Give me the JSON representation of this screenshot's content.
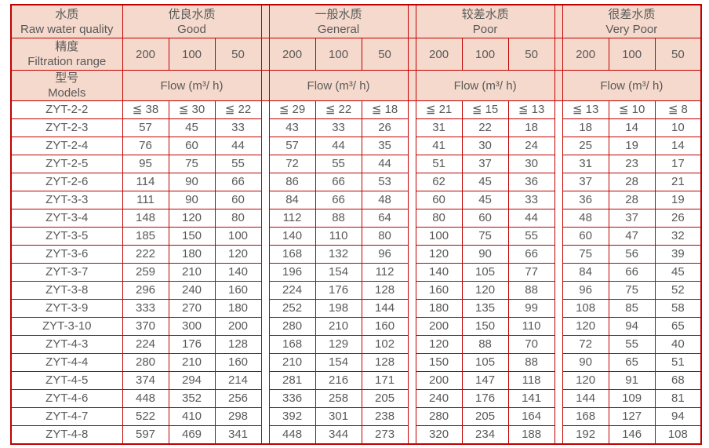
{
  "table": {
    "colors": {
      "border_red": "#c00000",
      "header_bg": "#f5d9cc",
      "text_gray": "#595959"
    },
    "corner": {
      "quality_zh": "水质",
      "quality_en": "Raw water quality",
      "precision_zh": "精度",
      "precision_en": "Filtration range",
      "models_zh": "型号",
      "models_en": "Models"
    },
    "quality_groups": [
      {
        "zh": "优良水质",
        "en": "Good"
      },
      {
        "zh": "一般水质",
        "en": "General"
      },
      {
        "zh": "较差水质",
        "en": "Poor"
      },
      {
        "zh": "很差水质",
        "en": "Very Poor"
      }
    ],
    "precision_values": [
      "200",
      "100",
      "50"
    ],
    "flow_label": "Flow (m³/ h)",
    "rows": [
      {
        "model": "ZYT-2-2",
        "values": [
          "≦ 38",
          "≦ 30",
          "≦ 22",
          "≦ 29",
          "≦ 22",
          "≦ 18",
          "≦ 21",
          "≦ 15",
          "≦ 13",
          "≦ 13",
          "≦ 10",
          "≦ 8"
        ]
      },
      {
        "model": "ZYT-2-3",
        "values": [
          "57",
          "45",
          "33",
          "43",
          "33",
          "26",
          "31",
          "22",
          "18",
          "18",
          "14",
          "10"
        ]
      },
      {
        "model": "ZYT-2-4",
        "values": [
          "76",
          "60",
          "44",
          "57",
          "44",
          "35",
          "41",
          "30",
          "24",
          "25",
          "19",
          "14"
        ]
      },
      {
        "model": "ZYT-2-5",
        "values": [
          "95",
          "75",
          "55",
          "72",
          "55",
          "44",
          "51",
          "37",
          "30",
          "31",
          "23",
          "17"
        ]
      },
      {
        "model": "ZYT-2-6",
        "values": [
          "114",
          "90",
          "66",
          "86",
          "66",
          "53",
          "62",
          "45",
          "36",
          "37",
          "28",
          "21"
        ]
      },
      {
        "model": "ZYT-3-3",
        "values": [
          "111",
          "90",
          "60",
          "84",
          "66",
          "48",
          "60",
          "45",
          "33",
          "36",
          "28",
          "19"
        ]
      },
      {
        "model": "ZYT-3-4",
        "values": [
          "148",
          "120",
          "80",
          "112",
          "88",
          "64",
          "80",
          "60",
          "44",
          "48",
          "37",
          "26"
        ]
      },
      {
        "model": "ZYT-3-5",
        "values": [
          "185",
          "150",
          "100",
          "140",
          "110",
          "80",
          "100",
          "75",
          "55",
          "60",
          "47",
          "32"
        ]
      },
      {
        "model": "ZYT-3-6",
        "values": [
          "222",
          "180",
          "120",
          "168",
          "132",
          "96",
          "120",
          "90",
          "66",
          "75",
          "56",
          "39"
        ]
      },
      {
        "model": "ZYT-3-7",
        "values": [
          "259",
          "210",
          "140",
          "196",
          "154",
          "112",
          "140",
          "105",
          "77",
          "84",
          "66",
          "45"
        ]
      },
      {
        "model": "ZYT-3-8",
        "values": [
          "296",
          "240",
          "160",
          "224",
          "176",
          "128",
          "160",
          "120",
          "88",
          "96",
          "75",
          "52"
        ]
      },
      {
        "model": "ZYT-3-9",
        "values": [
          "333",
          "270",
          "180",
          "252",
          "198",
          "144",
          "180",
          "135",
          "99",
          "108",
          "85",
          "58"
        ]
      },
      {
        "model": "ZYT-3-10",
        "values": [
          "370",
          "300",
          "200",
          "280",
          "210",
          "160",
          "200",
          "150",
          "110",
          "120",
          "94",
          "65"
        ]
      },
      {
        "model": "ZYT-4-3",
        "values": [
          "224",
          "176",
          "128",
          "168",
          "129",
          "102",
          "120",
          "88",
          "70",
          "72",
          "55",
          "40"
        ]
      },
      {
        "model": "ZYT-4-4",
        "values": [
          "280",
          "210",
          "160",
          "210",
          "154",
          "128",
          "150",
          "105",
          "88",
          "90",
          "65",
          "51"
        ]
      },
      {
        "model": "ZYT-4-5",
        "values": [
          "374",
          "294",
          "214",
          "281",
          "216",
          "171",
          "200",
          "147",
          "118",
          "120",
          "91",
          "68"
        ]
      },
      {
        "model": "ZYT-4-6",
        "values": [
          "448",
          "352",
          "256",
          "336",
          "258",
          "205",
          "240",
          "176",
          "141",
          "144",
          "109",
          "81"
        ]
      },
      {
        "model": "ZYT-4-7",
        "values": [
          "522",
          "410",
          "298",
          "392",
          "301",
          "238",
          "280",
          "205",
          "164",
          "168",
          "127",
          "94"
        ]
      },
      {
        "model": "ZYT-4-8",
        "values": [
          "597",
          "469",
          "341",
          "448",
          "344",
          "273",
          "320",
          "234",
          "188",
          "192",
          "146",
          "108"
        ]
      }
    ]
  }
}
